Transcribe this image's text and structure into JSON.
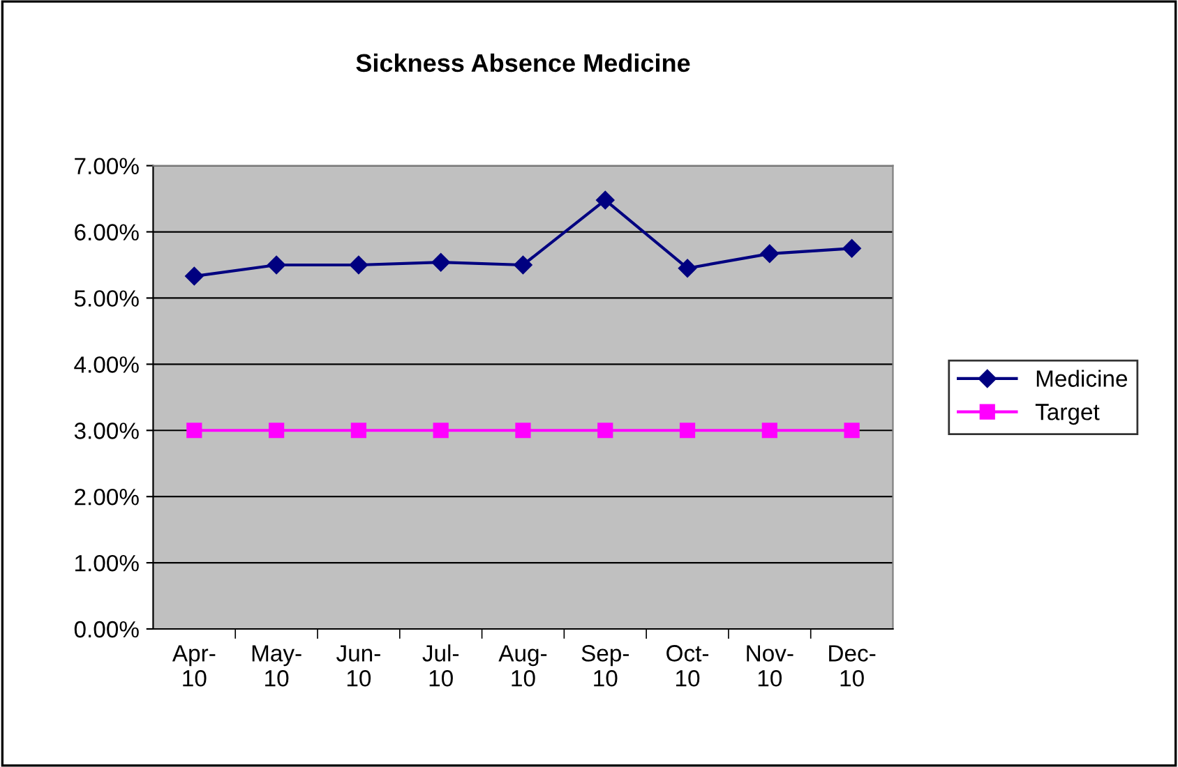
{
  "chart_data": {
    "type": "line",
    "title": "Sickness Absence Medicine",
    "categories": [
      "Apr-10",
      "May-10",
      "Jun-10",
      "Jul-10",
      "Aug-10",
      "Sep-10",
      "Oct-10",
      "Nov-10",
      "Dec-10"
    ],
    "series": [
      {
        "name": "Medicine",
        "color": "#000080",
        "marker": "diamond",
        "values": [
          5.33,
          5.5,
          5.5,
          5.54,
          5.5,
          6.48,
          5.45,
          5.67,
          5.75
        ]
      },
      {
        "name": "Target",
        "color": "#ff00ff",
        "marker": "square",
        "values": [
          3,
          3,
          3,
          3,
          3,
          3,
          3,
          3,
          3
        ]
      }
    ],
    "ylim": [
      0,
      7
    ],
    "yticks": [
      {
        "value": 0,
        "label": "0.00%"
      },
      {
        "value": 1,
        "label": "1.00%"
      },
      {
        "value": 2,
        "label": "2.00%"
      },
      {
        "value": 3,
        "label": "3.00%"
      },
      {
        "value": 4,
        "label": "4.00%"
      },
      {
        "value": 5,
        "label": "5.00%"
      },
      {
        "value": 6,
        "label": "6.00%"
      },
      {
        "value": 7,
        "label": "7.00%"
      }
    ],
    "grid": "y",
    "legend": "right",
    "line_style": "solid"
  }
}
